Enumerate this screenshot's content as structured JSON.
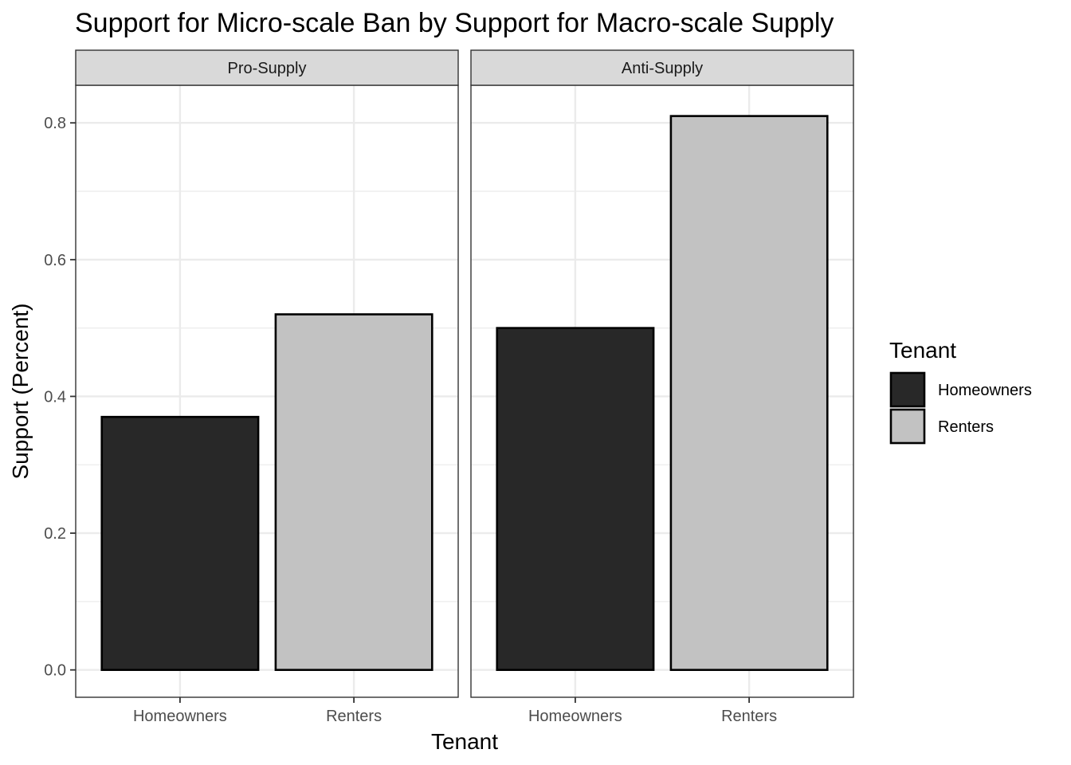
{
  "chart_data": {
    "type": "bar",
    "title": "Support for Micro-scale Ban by Support for Macro-scale Supply",
    "xlabel": "Tenant",
    "ylabel": "Support (Percent)",
    "ylim": [
      -0.04,
      0.855
    ],
    "yticks": [
      0.0,
      0.2,
      0.4,
      0.6,
      0.8
    ],
    "ytick_labels": [
      "0.0",
      "0.2",
      "0.4",
      "0.6",
      "0.8"
    ],
    "categories": [
      "Homeowners",
      "Renters"
    ],
    "facets": [
      {
        "label": "Pro-Supply",
        "values": [
          0.37,
          0.52
        ]
      },
      {
        "label": "Anti-Supply",
        "values": [
          0.5,
          0.81
        ]
      }
    ],
    "legend": {
      "title": "Tenant",
      "position": "right",
      "items": [
        {
          "label": "Homeowners",
          "color": "#282828"
        },
        {
          "label": "Renters",
          "color": "#c2c2c2"
        }
      ]
    },
    "grid": true,
    "theme": "bw"
  }
}
